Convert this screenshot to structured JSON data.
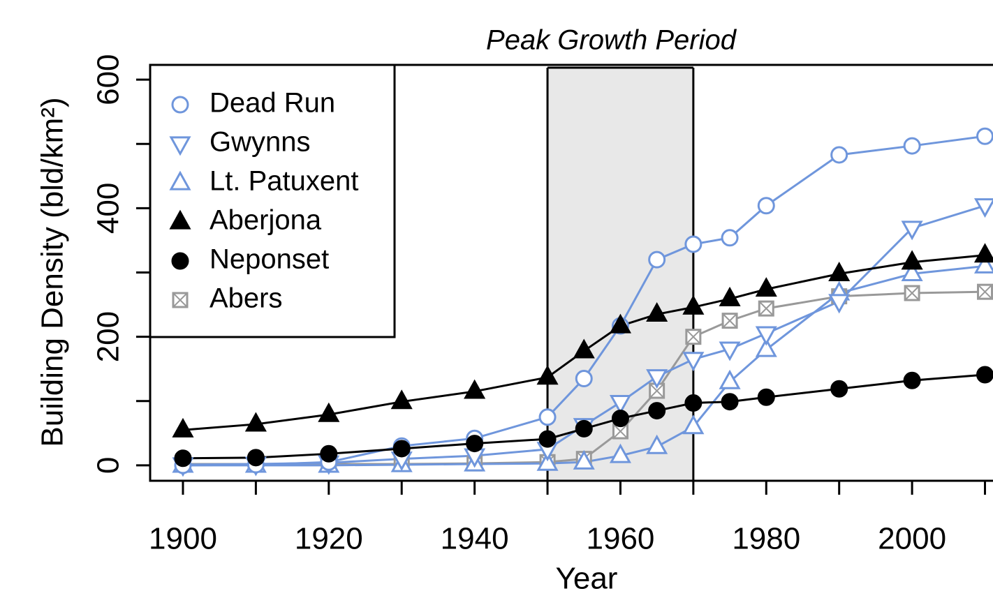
{
  "chart_data": {
    "type": "line",
    "title": "Peak Growth Period",
    "xlabel": "Year",
    "ylabel": "Building Density (bld/km²)",
    "x": [
      1900,
      1910,
      1920,
      1930,
      1940,
      1950,
      1955,
      1960,
      1965,
      1970,
      1975,
      1980,
      1990,
      2000,
      2010
    ],
    "series": [
      {
        "name": "Dead Run",
        "color": "#6f96dc",
        "marker": "circle-open",
        "values": [
          0,
          1,
          5,
          30,
          42,
          75,
          135,
          217,
          320,
          344,
          354,
          404,
          483,
          497,
          512
        ]
      },
      {
        "name": "Gwynns",
        "color": "#6f96dc",
        "marker": "triangle-down-open",
        "values": [
          1,
          2,
          4,
          10,
          15,
          25,
          62,
          98,
          138,
          165,
          181,
          205,
          255,
          369,
          404
        ]
      },
      {
        "name": "Lt. Patuxent",
        "color": "#6f96dc",
        "marker": "triangle-up-open",
        "values": [
          0,
          0,
          0,
          1,
          2,
          3,
          5,
          15,
          29,
          60,
          130,
          180,
          268,
          298,
          310
        ]
      },
      {
        "name": "Aberjona",
        "color": "#000000",
        "marker": "triangle-up-filled",
        "values": [
          55,
          64,
          79,
          99,
          115,
          137,
          178,
          217,
          235,
          246,
          259,
          274,
          298,
          316,
          327
        ]
      },
      {
        "name": "Neponset",
        "color": "#000000",
        "marker": "circle-filled",
        "values": [
          11,
          12,
          18,
          26,
          34,
          41,
          57,
          73,
          85,
          97,
          99,
          106,
          119,
          132,
          141
        ]
      },
      {
        "name": "Abers",
        "color": "#999999",
        "marker": "square-x",
        "values": [
          2,
          2,
          2,
          2,
          3,
          5,
          10,
          53,
          116,
          200,
          225,
          244,
          263,
          268,
          270
        ]
      }
    ],
    "shade": [
      1950,
      1970
    ],
    "xlim": [
      1895.5,
      2011.1
    ],
    "ylim": [
      -24,
      623
    ],
    "xticks": [
      1900,
      1920,
      1940,
      1960,
      1980,
      2000
    ],
    "xticks_minor": [
      1910,
      1930,
      1950,
      1970,
      1990,
      2010
    ],
    "yticks": [
      0,
      200,
      400,
      600
    ],
    "yticks_minor": [
      100,
      300,
      500
    ],
    "legend": "top-left",
    "grid": false
  }
}
